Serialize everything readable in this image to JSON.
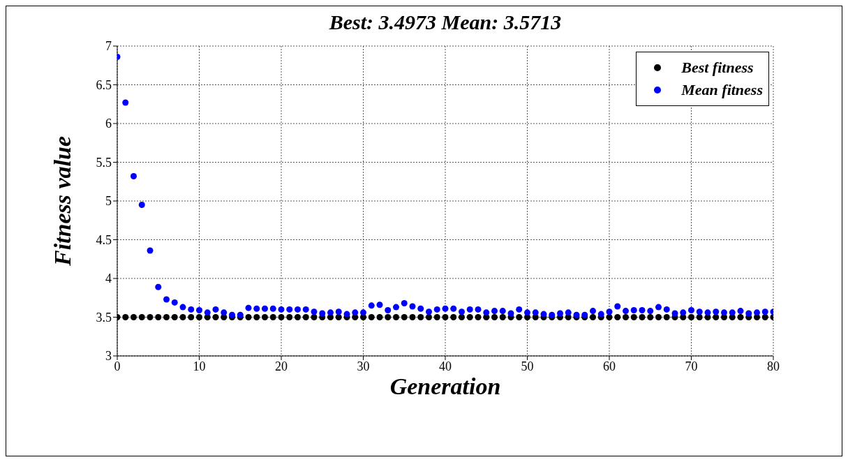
{
  "chart_data": {
    "type": "scatter",
    "title": "Best: 3.4973 Mean: 3.5713",
    "xlabel": "Generation",
    "ylabel": "Fitness value",
    "x": [
      0,
      1,
      2,
      3,
      4,
      5,
      6,
      7,
      8,
      9,
      10,
      11,
      12,
      13,
      14,
      15,
      16,
      17,
      18,
      19,
      20,
      21,
      22,
      23,
      24,
      25,
      26,
      27,
      28,
      29,
      30,
      31,
      32,
      33,
      34,
      35,
      36,
      37,
      38,
      39,
      40,
      41,
      42,
      43,
      44,
      45,
      46,
      47,
      48,
      49,
      50,
      51,
      52,
      53,
      54,
      55,
      56,
      57,
      58,
      59,
      60,
      61,
      62,
      63,
      64,
      65,
      66,
      67,
      68,
      69,
      70,
      71,
      72,
      73,
      74,
      75,
      76,
      77,
      78,
      79,
      80
    ],
    "series": [
      {
        "name": "Best fitness",
        "color": "#000000",
        "values": [
          3.5,
          3.5,
          3.5,
          3.5,
          3.5,
          3.5,
          3.5,
          3.5,
          3.5,
          3.5,
          3.5,
          3.5,
          3.5,
          3.5,
          3.5,
          3.5,
          3.5,
          3.5,
          3.5,
          3.5,
          3.5,
          3.5,
          3.5,
          3.5,
          3.5,
          3.5,
          3.5,
          3.5,
          3.5,
          3.5,
          3.5,
          3.5,
          3.5,
          3.5,
          3.5,
          3.5,
          3.5,
          3.5,
          3.5,
          3.5,
          3.5,
          3.5,
          3.5,
          3.5,
          3.5,
          3.5,
          3.5,
          3.5,
          3.5,
          3.5,
          3.5,
          3.5,
          3.5,
          3.5,
          3.5,
          3.5,
          3.5,
          3.5,
          3.5,
          3.5,
          3.5,
          3.5,
          3.5,
          3.5,
          3.5,
          3.5,
          3.5,
          3.5,
          3.5,
          3.5,
          3.5,
          3.5,
          3.5,
          3.5,
          3.5,
          3.5,
          3.5,
          3.5,
          3.5,
          3.5,
          3.5
        ]
      },
      {
        "name": "Mean fitness",
        "color": "#0000ff",
        "values": [
          6.86,
          6.27,
          5.32,
          4.95,
          4.36,
          3.89,
          3.73,
          3.69,
          3.63,
          3.6,
          3.59,
          3.56,
          3.6,
          3.56,
          3.53,
          3.53,
          3.62,
          3.61,
          3.61,
          3.61,
          3.6,
          3.6,
          3.6,
          3.6,
          3.57,
          3.55,
          3.56,
          3.57,
          3.54,
          3.56,
          3.56,
          3.65,
          3.66,
          3.59,
          3.63,
          3.68,
          3.64,
          3.61,
          3.57,
          3.6,
          3.61,
          3.61,
          3.57,
          3.6,
          3.6,
          3.56,
          3.58,
          3.58,
          3.55,
          3.6,
          3.56,
          3.56,
          3.54,
          3.53,
          3.55,
          3.56,
          3.53,
          3.53,
          3.58,
          3.54,
          3.57,
          3.64,
          3.58,
          3.59,
          3.59,
          3.58,
          3.63,
          3.6,
          3.55,
          3.56,
          3.59,
          3.57,
          3.56,
          3.57,
          3.56,
          3.56,
          3.58,
          3.55,
          3.56,
          3.57,
          3.57
        ]
      }
    ],
    "xlim": [
      0,
      80
    ],
    "xticks": [
      0,
      10,
      20,
      30,
      40,
      50,
      60,
      70,
      80
    ],
    "ylim": [
      3,
      7
    ],
    "yticks": [
      3,
      3.5,
      4,
      4.5,
      5,
      5.5,
      6,
      6.5,
      7
    ],
    "grid": true,
    "legend": "top right",
    "marker": "circle"
  }
}
